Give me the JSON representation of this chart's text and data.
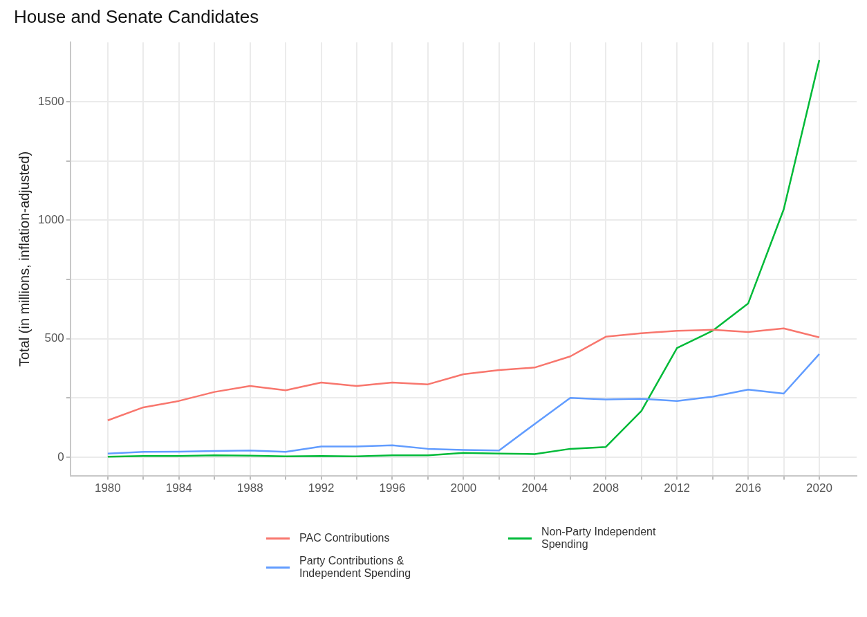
{
  "chart_data": {
    "type": "line",
    "title": "House and Senate Candidates",
    "ylabel": "Total (in millions, inflation-adjusted)",
    "x": [
      1980,
      1982,
      1984,
      1986,
      1988,
      1990,
      1992,
      1994,
      1996,
      1998,
      2000,
      2002,
      2004,
      2006,
      2008,
      2010,
      2012,
      2014,
      2016,
      2018,
      2020
    ],
    "series": [
      {
        "name": "PAC Contributions",
        "color": "#f8766d",
        "values": [
          155,
          210,
          237,
          275,
          300,
          282,
          315,
          300,
          315,
          307,
          350,
          367,
          378,
          425,
          508,
          523,
          533,
          537,
          528,
          543,
          505
        ]
      },
      {
        "name": "Party Contributions & Independent Spending",
        "color": "#619cff",
        "values": [
          15,
          22,
          23,
          26,
          28,
          22,
          45,
          45,
          50,
          35,
          30,
          28,
          140,
          250,
          243,
          246,
          237,
          255,
          285,
          268,
          435
        ]
      },
      {
        "name": "Non-Party Independent Spending",
        "color": "#00ba38",
        "values": [
          2,
          5,
          5,
          8,
          6,
          3,
          5,
          3,
          8,
          8,
          18,
          15,
          13,
          35,
          43,
          195,
          460,
          533,
          648,
          1045,
          1675
        ]
      }
    ],
    "xlim": [
      1977.9,
      2022.1
    ],
    "xticks": [
      1980,
      {
        "value": 1982,
        "label": null
      },
      1984,
      {
        "value": 1986,
        "label": null
      },
      1988,
      {
        "value": 1990,
        "label": null
      },
      1992,
      {
        "value": 1994,
        "label": null
      },
      1996,
      {
        "value": 1998,
        "label": null
      },
      2000,
      {
        "value": 2002,
        "label": null
      },
      2004,
      {
        "value": 2006,
        "label": null
      },
      2008,
      {
        "value": 2010,
        "label": null
      },
      2012,
      {
        "value": 2014,
        "label": null
      },
      2016,
      {
        "value": 2018,
        "label": null
      },
      2020
    ],
    "ylim": [
      -78,
      1750
    ],
    "yticks": [
      0,
      {
        "value": 250,
        "label": null
      },
      500,
      {
        "value": 750,
        "label": null
      },
      1000,
      {
        "value": 1250,
        "label": null
      },
      1500
    ],
    "grid": true,
    "legend": "bottom",
    "marker": "none",
    "line_style": "solid"
  }
}
